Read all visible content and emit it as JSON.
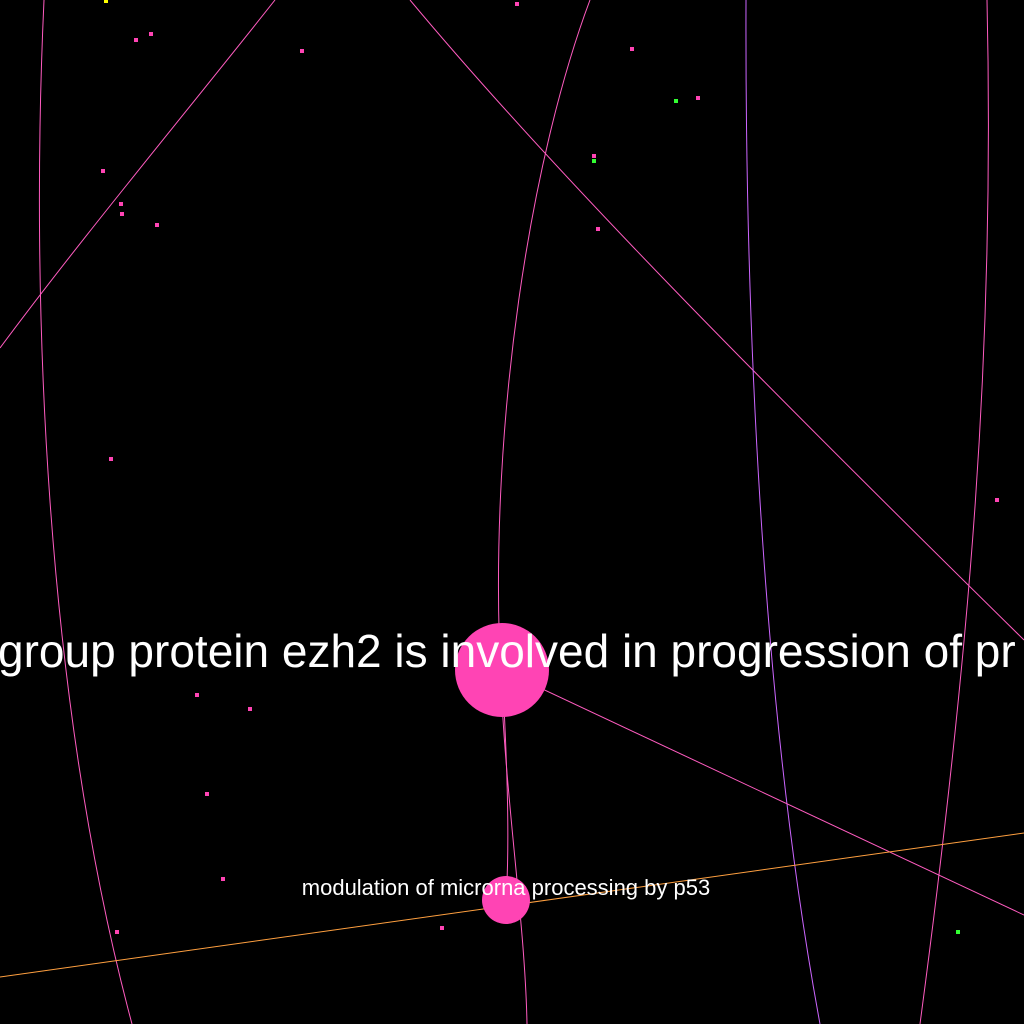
{
  "graph": {
    "background": "#000000",
    "colors": {
      "node_pink": "#ff44b4",
      "edge_pink": "#ff5cc0",
      "edge_violet": "#cc66ff",
      "edge_orange": "#ffa040",
      "dot_green": "#33ff33",
      "dot_yellow": "#ffff00",
      "label": "#ffffff"
    },
    "nodes": [
      {
        "id": "ezh2",
        "label": "group protein ezh2 is involved in progression of pr"
      },
      {
        "id": "p53",
        "label": "modulation of microrna processing by p53"
      }
    ]
  }
}
